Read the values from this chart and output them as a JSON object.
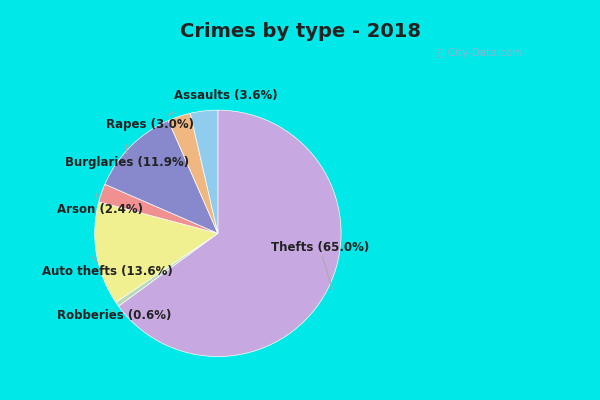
{
  "title": "Crimes by type - 2018",
  "ordered_labels": [
    "Thefts",
    "Robberies",
    "Auto thefts",
    "Arson",
    "Burglaries",
    "Rapes",
    "Assaults"
  ],
  "ordered_sizes": [
    65.0,
    0.6,
    13.6,
    2.4,
    11.9,
    3.0,
    3.6
  ],
  "ordered_colors": [
    "#c8a8e0",
    "#b8d8b8",
    "#f0f090",
    "#f09090",
    "#8888cc",
    "#f0b880",
    "#90ccee"
  ],
  "bg_color": "#00e8e8",
  "inner_bg": "#d8eed8",
  "title_color": "#222222",
  "label_color": "#222222",
  "line_color": "#aaaaaa",
  "watermark_color": "#aaaacc",
  "title_fontsize": 14,
  "label_fontsize": 8.5,
  "figsize": [
    6.0,
    4.0
  ],
  "dpi": 100
}
